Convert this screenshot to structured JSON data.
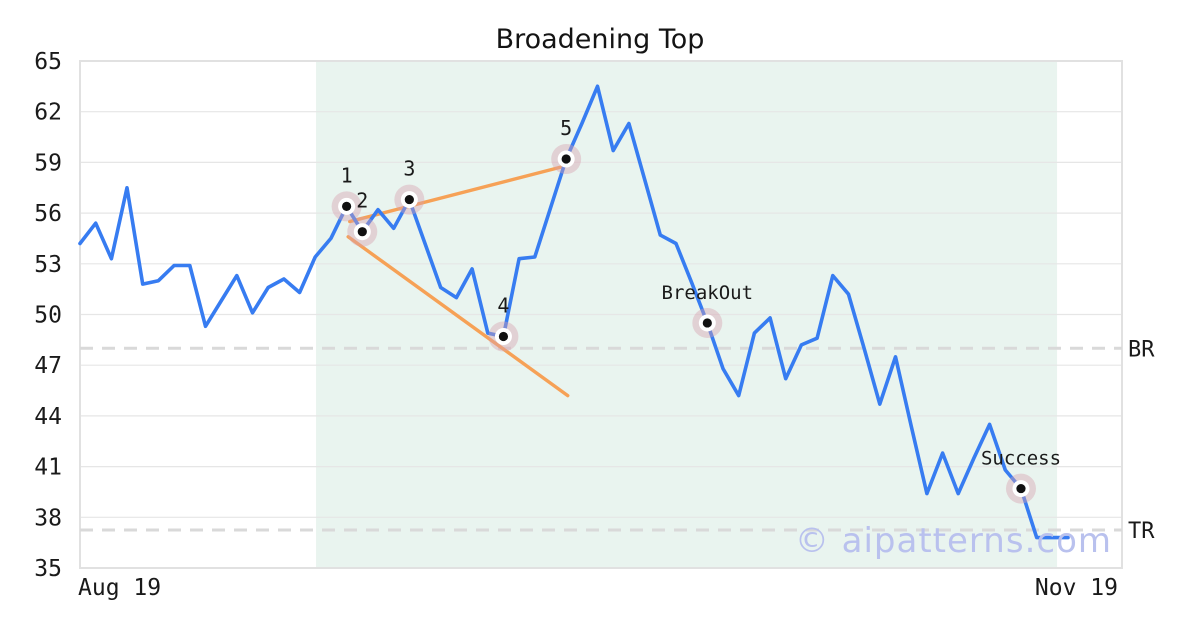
{
  "title": "Broadening Top",
  "watermark_text": "© aipatterns.com",
  "chart_data": {
    "type": "line",
    "title": "Broadening Top",
    "xlabel": "",
    "ylabel": "",
    "x_axis": {
      "start_label": "Aug 19",
      "end_label": "Nov 19"
    },
    "y_axis": {
      "min": 35,
      "max": 65,
      "ticks": [
        35,
        38,
        41,
        44,
        47,
        50,
        53,
        56,
        59,
        62,
        65
      ]
    },
    "grid": "horizontal-only",
    "series": [
      {
        "name": "price",
        "values": [
          54.2,
          55.4,
          53.3,
          57.5,
          51.8,
          52.0,
          52.9,
          52.9,
          49.3,
          50.8,
          52.3,
          50.1,
          51.6,
          52.1,
          51.3,
          53.4,
          54.5,
          56.4,
          54.9,
          56.2,
          55.1,
          56.8,
          54.2,
          51.6,
          51.0,
          52.7,
          48.9,
          48.7,
          53.3,
          53.4,
          56.3,
          59.2,
          61.3,
          63.5,
          59.7,
          61.3,
          58.0,
          54.7,
          54.2,
          51.9,
          49.5,
          46.8,
          45.2,
          48.9,
          49.8,
          46.2,
          48.2,
          48.6,
          52.3,
          51.2,
          48.0,
          44.7,
          47.5,
          43.4,
          39.4,
          41.8,
          39.4,
          41.5,
          43.5,
          40.8,
          39.7,
          36.8,
          36.8,
          36.8
        ]
      }
    ],
    "pattern_points": [
      {
        "label": "1",
        "index": 17,
        "value": 56.4
      },
      {
        "label": "2",
        "index": 18,
        "value": 54.9
      },
      {
        "label": "3",
        "index": 21,
        "value": 56.8
      },
      {
        "label": "4",
        "index": 27,
        "value": 48.7
      },
      {
        "label": "5",
        "index": 31,
        "value": 59.2
      }
    ],
    "annotations": [
      {
        "label": "BreakOut",
        "index": 40,
        "value": 49.5
      },
      {
        "label": "Success",
        "index": 60,
        "value": 39.7
      }
    ],
    "trendlines": [
      {
        "name": "upper-broadening-line",
        "from_index": 17.2,
        "from_value": 55.5,
        "to_index": 31.0,
        "to_value": 58.8
      },
      {
        "name": "lower-broadening-line",
        "from_index": 17.1,
        "from_value": 54.6,
        "to_index": 31.1,
        "to_value": 45.2
      }
    ],
    "threshold_lines": [
      {
        "label": "BR",
        "value": 48.0
      },
      {
        "label": "TR",
        "value": 37.25
      }
    ],
    "highlight_region": {
      "from_index": 15.05,
      "to_index": 62.3
    }
  },
  "colors": {
    "line": "#377cf1",
    "trendline": "#f6a156",
    "halo": "rgba(214,160,173,0.42)",
    "marker_ring": "#ffffff",
    "marker_dot": "#111111",
    "grid": "#e6e6e6",
    "border": "#e1e1e1",
    "dashed": "#d9d9d9",
    "highlight": "#e9f4ef",
    "watermark": "#b9c1ee",
    "text": "#1a1a1a"
  }
}
